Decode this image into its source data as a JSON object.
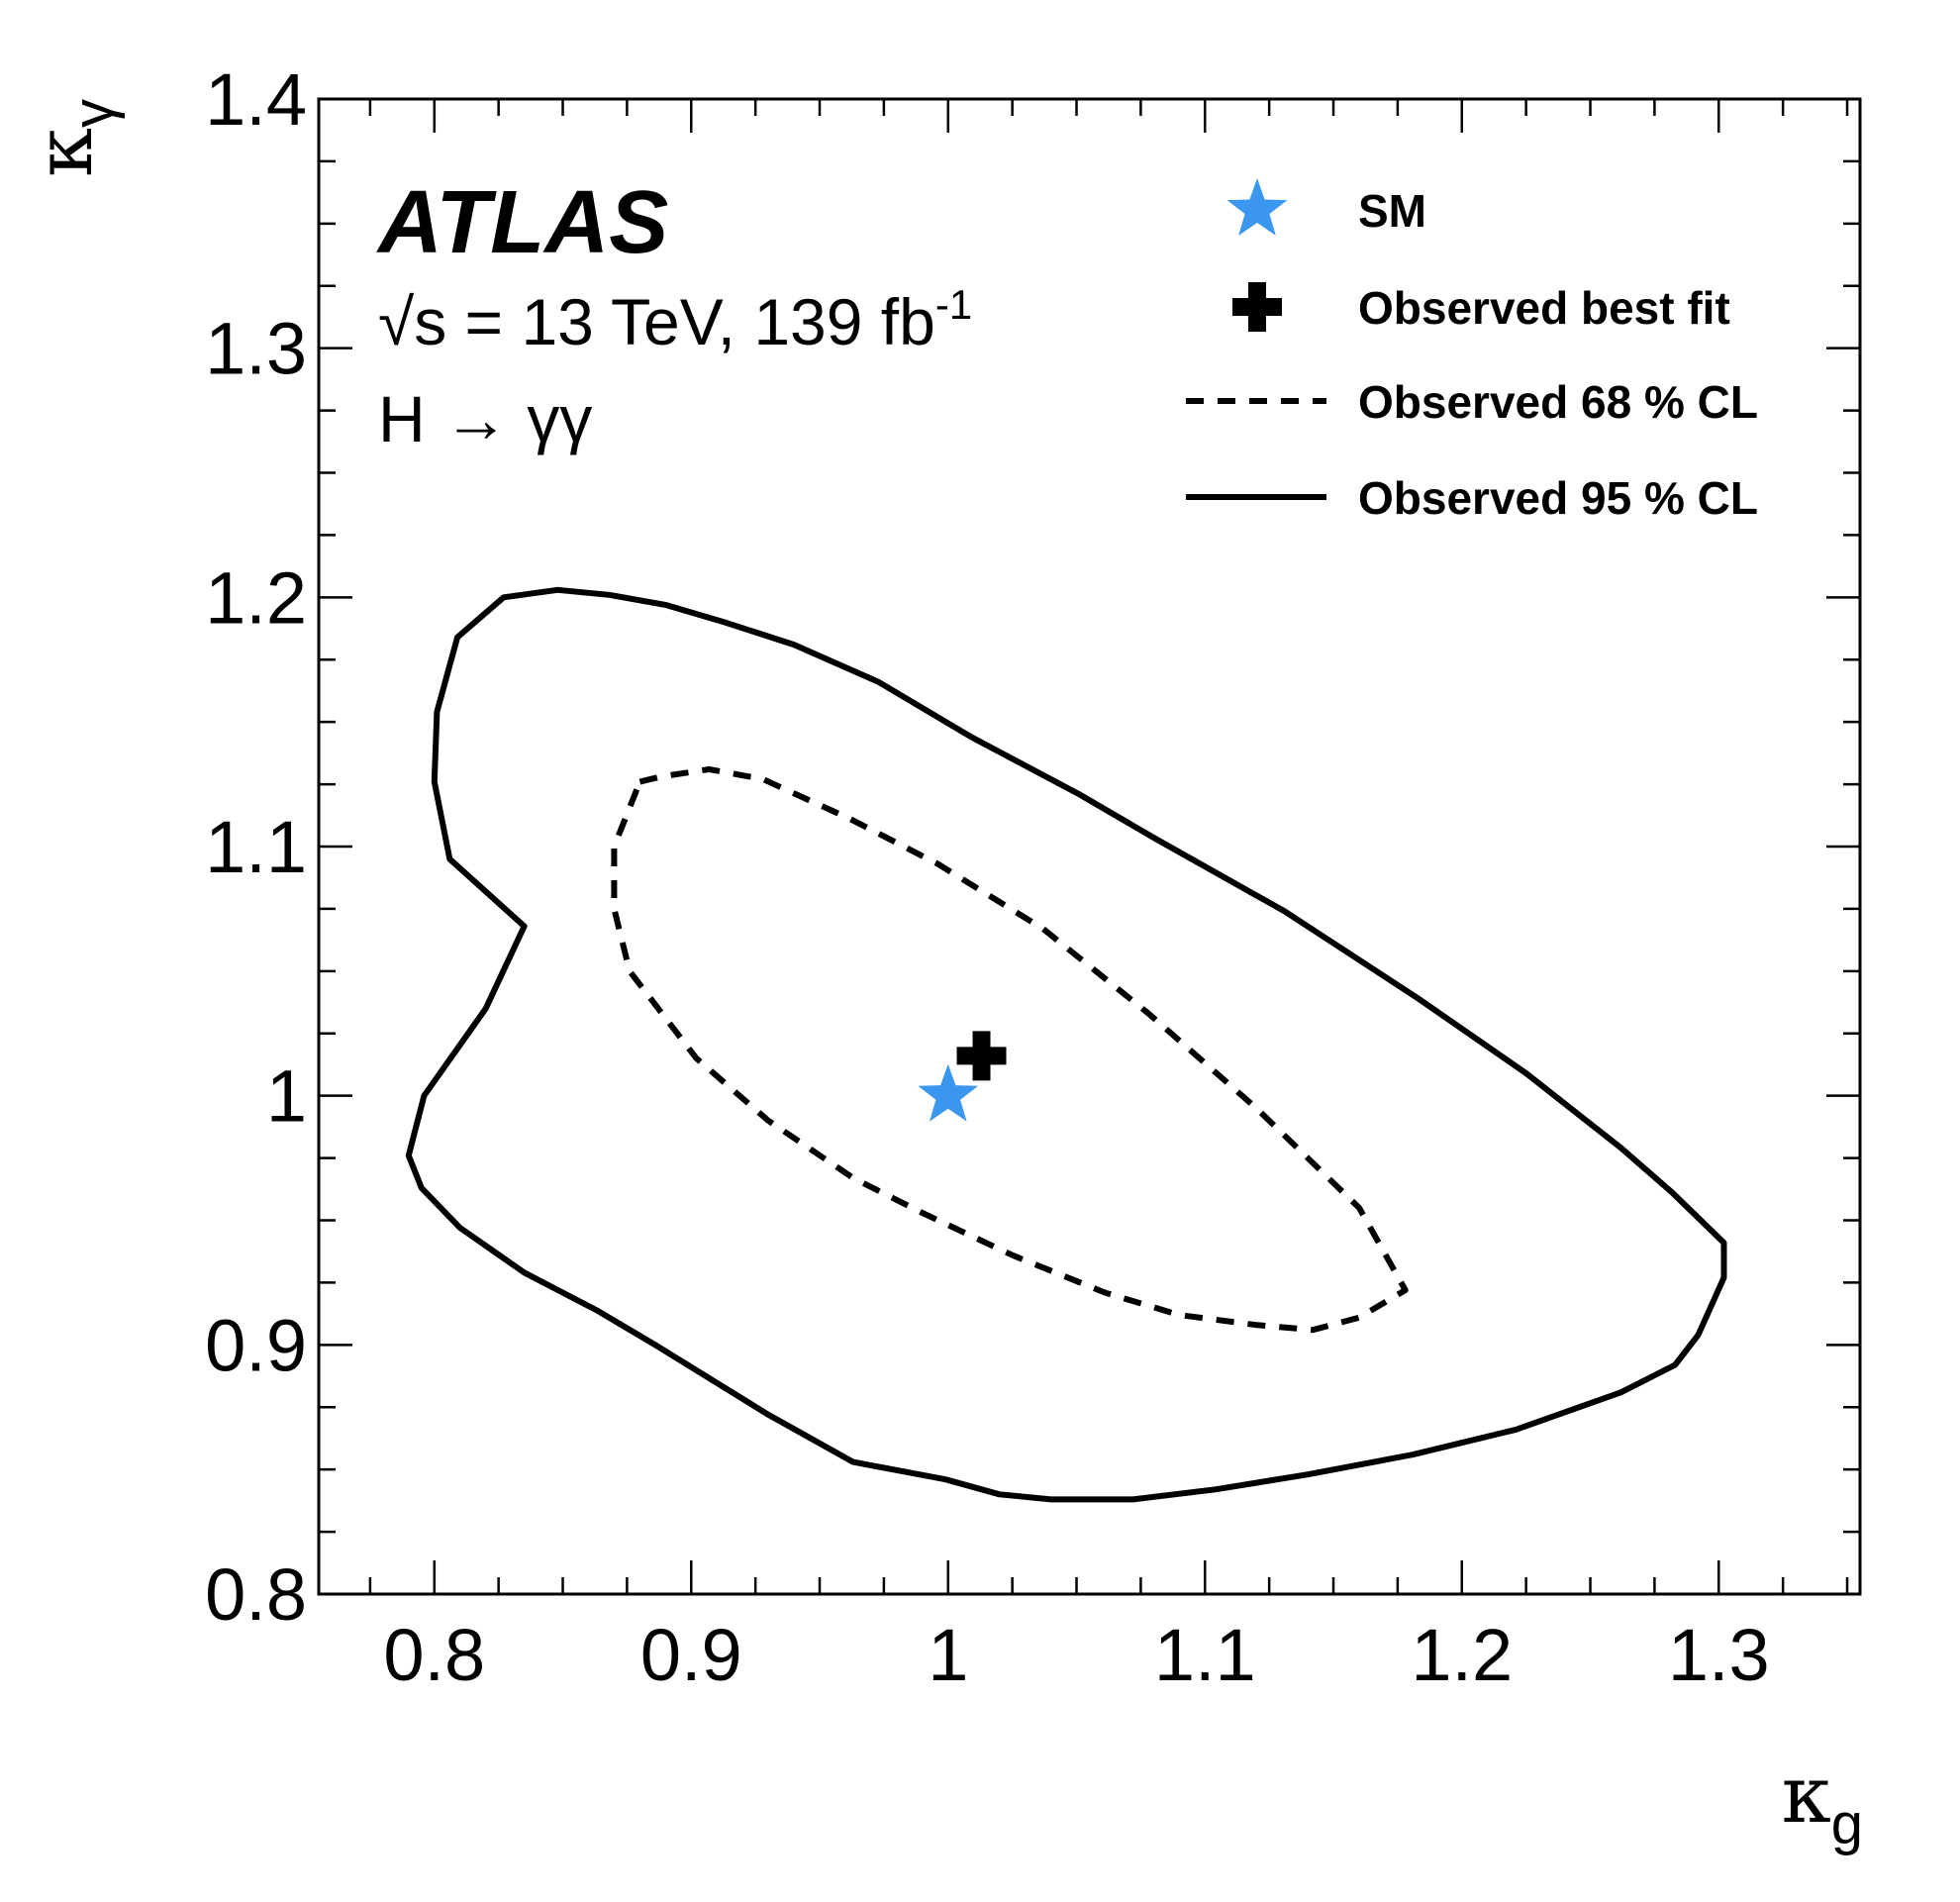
{
  "chart_data": {
    "type": "scatter",
    "experiment": "ATLAS",
    "info_line_1": "√s = 13 TeV, 139 fb",
    "info_line_1_sup": "-1",
    "info_line_2": "H → γγ",
    "xlabel": "κ",
    "xlabel_sub": "g",
    "ylabel": "κ",
    "ylabel_sub": "γ",
    "xlim": [
      0.755,
      1.355
    ],
    "ylim": [
      0.8,
      1.4
    ],
    "x_ticks": [
      0.8,
      0.9,
      1.0,
      1.1,
      1.2,
      1.3
    ],
    "x_tick_labels": [
      "0.8",
      "0.9",
      "1",
      "1.1",
      "1.2",
      "1.3"
    ],
    "y_ticks": [
      0.8,
      0.9,
      1.0,
      1.1,
      1.2,
      1.3,
      1.4
    ],
    "y_tick_labels": [
      "0.8",
      "0.9",
      "1",
      "1.1",
      "1.2",
      "1.3",
      "1.4"
    ],
    "grid": false,
    "legend_position": "top-right",
    "series": [
      {
        "name": "SM",
        "kind": "marker-star",
        "color": "#3b96f0",
        "points": [
          [
            1.0,
            1.0
          ]
        ]
      },
      {
        "name": "Observed best fit",
        "kind": "marker-cross",
        "color": "#000000",
        "points": [
          [
            1.013,
            1.016
          ]
        ]
      },
      {
        "name": "Observed 68 % CL",
        "kind": "contour-dashed",
        "color": "#000000",
        "points": [
          [
            0.88,
            1.126
          ],
          [
            0.888,
            1.128
          ],
          [
            0.907,
            1.131
          ],
          [
            0.928,
            1.127
          ],
          [
            0.962,
            1.111
          ],
          [
            0.996,
            1.093
          ],
          [
            1.037,
            1.067
          ],
          [
            1.078,
            1.033
          ],
          [
            1.12,
            0.995
          ],
          [
            1.16,
            0.955
          ],
          [
            1.178,
            0.922
          ],
          [
            1.16,
            0.911
          ],
          [
            1.142,
            0.906
          ],
          [
            1.12,
            0.908
          ],
          [
            1.09,
            0.912
          ],
          [
            1.061,
            0.921
          ],
          [
            1.025,
            0.936
          ],
          [
            0.99,
            0.953
          ],
          [
            0.963,
            0.967
          ],
          [
            0.93,
            0.99
          ],
          [
            0.902,
            1.015
          ],
          [
            0.876,
            1.05
          ],
          [
            0.87,
            1.075
          ],
          [
            0.87,
            1.1
          ],
          [
            0.88,
            1.126
          ]
        ]
      },
      {
        "name": "Observed 95 % CL",
        "kind": "contour-solid",
        "color": "#000000",
        "points": [
          [
            0.809,
            1.184
          ],
          [
            0.827,
            1.2
          ],
          [
            0.848,
            1.203
          ],
          [
            0.868,
            1.201
          ],
          [
            0.89,
            1.197
          ],
          [
            0.913,
            1.19
          ],
          [
            0.94,
            1.181
          ],
          [
            0.973,
            1.166
          ],
          [
            1.009,
            1.144
          ],
          [
            1.051,
            1.121
          ],
          [
            1.081,
            1.103
          ],
          [
            1.131,
            1.074
          ],
          [
            1.183,
            1.039
          ],
          [
            1.225,
            1.009
          ],
          [
            1.262,
            0.979
          ],
          [
            1.282,
            0.961
          ],
          [
            1.302,
            0.941
          ],
          [
            1.302,
            0.927
          ],
          [
            1.292,
            0.904
          ],
          [
            1.283,
            0.892
          ],
          [
            1.262,
            0.881
          ],
          [
            1.221,
            0.866
          ],
          [
            1.181,
            0.856
          ],
          [
            1.14,
            0.848
          ],
          [
            1.104,
            0.842
          ],
          [
            1.072,
            0.838
          ],
          [
            1.04,
            0.838
          ],
          [
            1.02,
            0.84
          ],
          [
            0.999,
            0.846
          ],
          [
            0.963,
            0.853
          ],
          [
            0.93,
            0.872
          ],
          [
            0.886,
            0.9
          ],
          [
            0.863,
            0.914
          ],
          [
            0.835,
            0.929
          ],
          [
            0.81,
            0.947
          ],
          [
            0.795,
            0.963
          ],
          [
            0.79,
            0.976
          ],
          [
            0.796,
            1.0
          ],
          [
            0.82,
            1.035
          ],
          [
            0.835,
            1.068
          ],
          [
            0.806,
            1.095
          ],
          [
            0.8,
            1.126
          ],
          [
            0.801,
            1.154
          ],
          [
            0.809,
            1.184
          ]
        ]
      }
    ]
  }
}
